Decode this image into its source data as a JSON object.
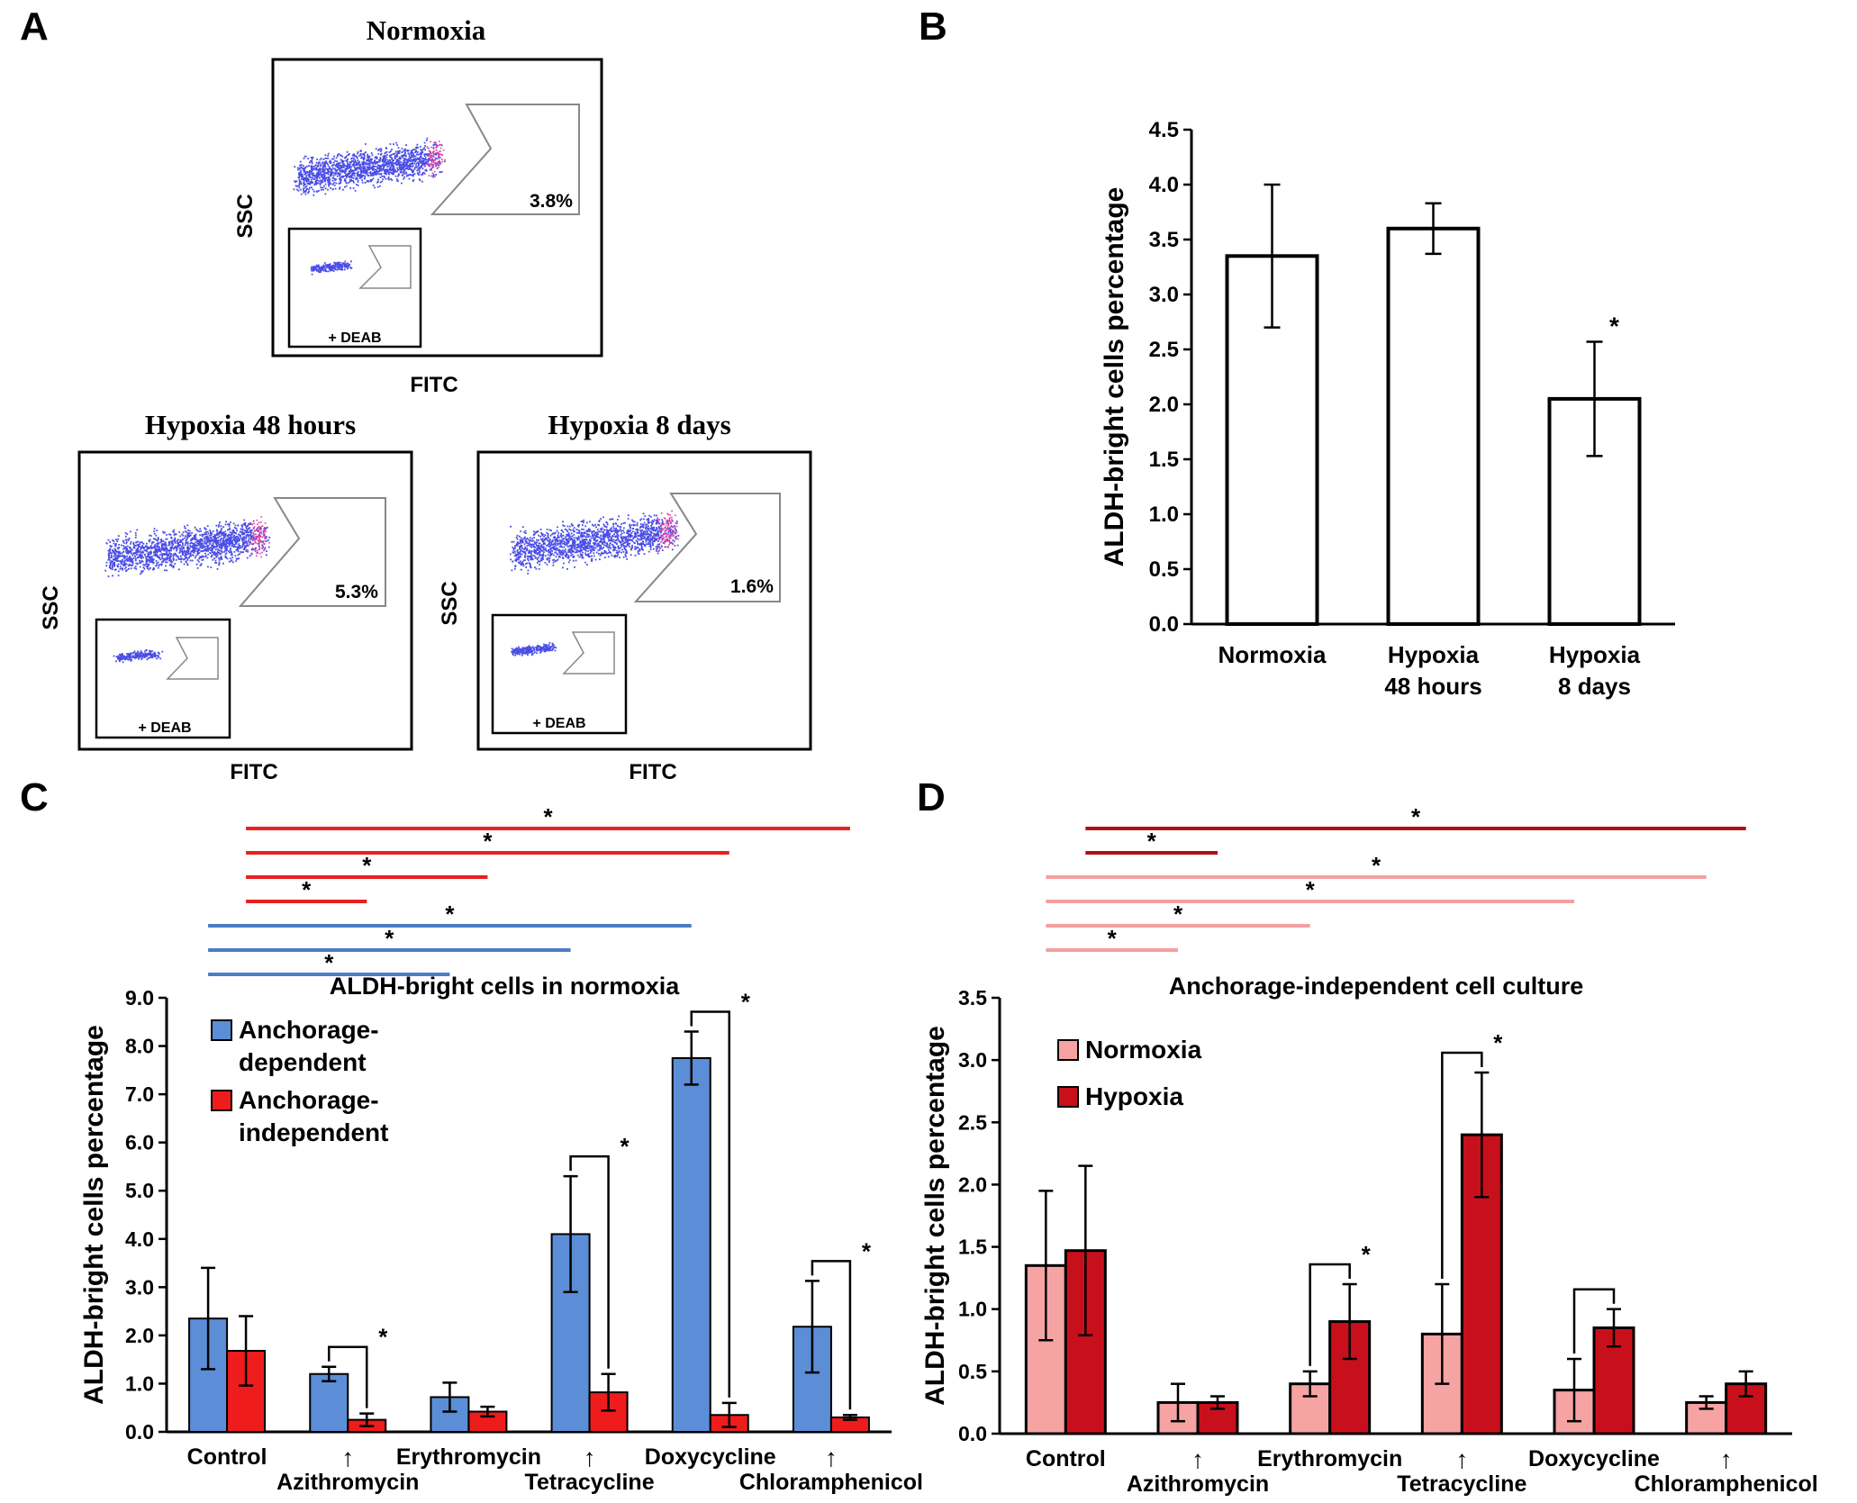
{
  "panels": {
    "A": {
      "letter": "A",
      "plots": [
        {
          "id": "normoxia",
          "title": "Normoxia",
          "gate_pct": "3.8%",
          "inset_label": "+ DEAB",
          "xlabel": "FITC",
          "ylabel": "SSC"
        },
        {
          "id": "h48",
          "title": "Hypoxia 48 hours",
          "gate_pct": "5.3%",
          "inset_label": "+ DEAB",
          "xlabel": "FITC",
          "ylabel": "SSC"
        },
        {
          "id": "h8d",
          "title": "Hypoxia 8 days",
          "gate_pct": "1.6%",
          "inset_label": "+ DEAB",
          "xlabel": "FITC",
          "ylabel": "SSC"
        }
      ],
      "colors": {
        "dots": "#2a2ee0",
        "gated": "#e040a0"
      }
    },
    "B": {
      "letter": "B"
    },
    "C": {
      "letter": "C"
    },
    "D": {
      "letter": "D"
    }
  },
  "chart_data": [
    {
      "panel": "B",
      "type": "bar",
      "title": "",
      "categories": [
        [
          "Normoxia"
        ],
        [
          "Hypoxia",
          "48 hours"
        ],
        [
          "Hypoxia",
          "8 days"
        ]
      ],
      "values": [
        3.35,
        3.6,
        2.05
      ],
      "errors": [
        0.65,
        0.23,
        0.52
      ],
      "significance": [
        "",
        "",
        "*"
      ],
      "ylabel": "ALDH-bright cells percentage",
      "ylim": [
        0,
        4.5
      ],
      "yticks": [
        "0.0",
        "0.5",
        "1.0",
        "1.5",
        "2.0",
        "2.5",
        "3.0",
        "3.5",
        "4.0",
        "4.5"
      ],
      "bar_color": "#ffffff"
    },
    {
      "panel": "C",
      "type": "bar",
      "title": "ALDH-bright  cells in normoxia",
      "categories": [
        "Control",
        "Azithromycin",
        "Erythromycin",
        "Tetracycline",
        "Doxycycline",
        "Chloramphenicol"
      ],
      "label_row": [
        0,
        1,
        0,
        1,
        0,
        1
      ],
      "arrow": "↑",
      "series": [
        {
          "name": "Anchorage-dependent",
          "legend_lines": [
            "Anchorage-",
            "dependent"
          ],
          "color": "#5b8ed6",
          "values": [
            2.35,
            1.2,
            0.72,
            4.1,
            7.75,
            2.18
          ],
          "errors": [
            1.05,
            0.15,
            0.3,
            1.2,
            0.55,
            0.95
          ]
        },
        {
          "name": "Anchorage-independent",
          "legend_lines": [
            "Anchorage-",
            "independent"
          ],
          "color": "#ee1c1c",
          "values": [
            1.68,
            0.25,
            0.42,
            0.82,
            0.35,
            0.3
          ],
          "errors": [
            0.72,
            0.13,
            0.1,
            0.38,
            0.25,
            0.05
          ]
        }
      ],
      "pair_brackets": [
        {
          "category": 1,
          "star": "*"
        },
        {
          "category": 3,
          "star": "*"
        },
        {
          "category": 4,
          "star": "*"
        },
        {
          "category": 5,
          "star": "*"
        }
      ],
      "span_lines": [
        {
          "from": 0,
          "to": 5,
          "color": "#e82020",
          "star": "*"
        },
        {
          "from": 0,
          "to": 4,
          "color": "#e82020",
          "star": "*"
        },
        {
          "from": 0,
          "to": 2,
          "color": "#e82020",
          "star": "*"
        },
        {
          "from": 0,
          "to": 1,
          "color": "#e82020",
          "star": "*"
        },
        {
          "from": 0,
          "to": 4,
          "color": "#4a7ec2",
          "star": "*"
        },
        {
          "from": 0,
          "to": 3,
          "color": "#4a7ec2",
          "star": "*"
        },
        {
          "from": 0,
          "to": 2,
          "color": "#4a7ec2",
          "star": "*"
        }
      ],
      "ylabel": "ALDH-bright cells percentage",
      "ylim": [
        0,
        9
      ],
      "yticks": [
        "0.0",
        "1.0",
        "2.0",
        "3.0",
        "4.0",
        "5.0",
        "6.0",
        "7.0",
        "8.0",
        "9.0"
      ]
    },
    {
      "panel": "D",
      "type": "bar",
      "title": "Anchorage-independent cell culture",
      "categories": [
        "Control",
        "Azithromycin",
        "Erythromycin",
        "Tetracycline",
        "Doxycycline",
        "Chloramphenicol"
      ],
      "label_row": [
        0,
        1,
        0,
        1,
        0,
        1
      ],
      "arrow": "↑",
      "series": [
        {
          "name": "Normoxia",
          "legend_lines": [
            "Normoxia"
          ],
          "color": "#f6a3a3",
          "values": [
            1.35,
            0.25,
            0.4,
            0.8,
            0.35,
            0.25
          ],
          "errors": [
            0.6,
            0.15,
            0.1,
            0.4,
            0.25,
            0.05
          ]
        },
        {
          "name": "Hypoxia",
          "legend_lines": [
            "Hypoxia"
          ],
          "color": "#c8101c",
          "values": [
            1.47,
            0.25,
            0.9,
            2.4,
            0.85,
            0.4
          ],
          "errors": [
            0.68,
            0.05,
            0.3,
            0.5,
            0.15,
            0.1
          ]
        }
      ],
      "pair_brackets": [
        {
          "category": 2,
          "star": "*"
        },
        {
          "category": 3,
          "star": "*"
        },
        {
          "category": 4,
          "star": ""
        }
      ],
      "span_lines": [
        {
          "from": 0,
          "to": 5,
          "color": "#b01010",
          "star": "*",
          "series": 1
        },
        {
          "from": 0,
          "to": 1,
          "color": "#b01010",
          "star": "*",
          "series": 1
        },
        {
          "from": 0,
          "to": 5,
          "color": "#f4a0a0",
          "star": "*",
          "series": 0
        },
        {
          "from": 0,
          "to": 4,
          "color": "#f4a0a0",
          "star": "*",
          "series": 0
        },
        {
          "from": 0,
          "to": 2,
          "color": "#f4a0a0",
          "star": "*",
          "series": 0
        },
        {
          "from": 0,
          "to": 1,
          "color": "#f4a0a0",
          "star": "*",
          "series": 0
        }
      ],
      "ylabel": "ALDH-bright cells percentage",
      "ylim": [
        0,
        3.5
      ],
      "yticks": [
        "0.0",
        "0.5",
        "1.0",
        "1.5",
        "2.0",
        "2.5",
        "3.0",
        "3.5"
      ]
    }
  ]
}
